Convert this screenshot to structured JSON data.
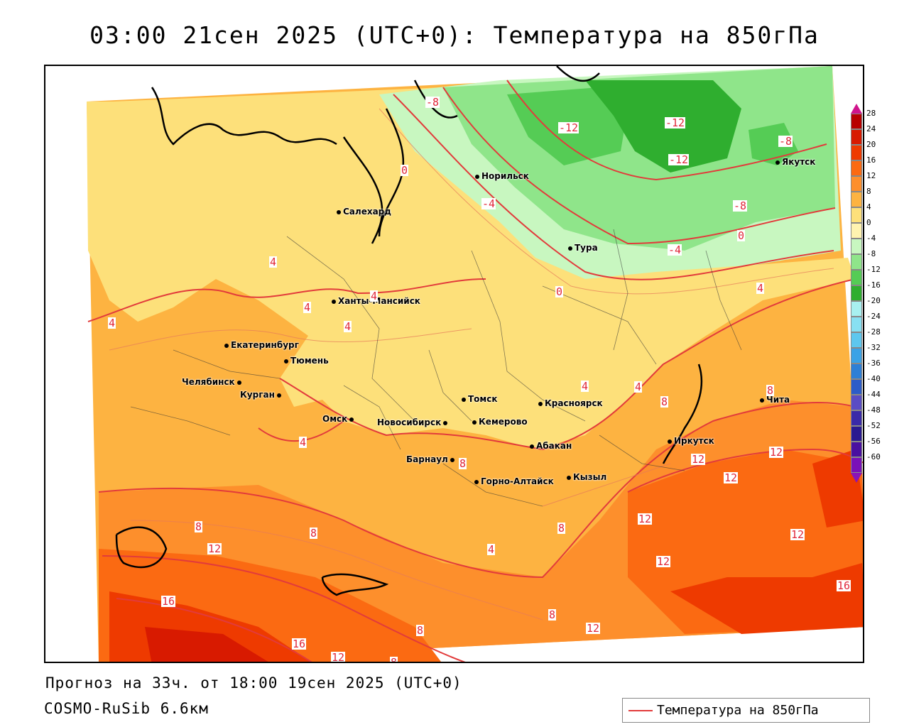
{
  "title": "03:00 21сен 2025 (UTC+0): Температура на 850гПа",
  "footer": {
    "forecast": "Прогноз на 33ч. от 18:00 19сен 2025 (UTC+0)",
    "model": "COSMO-RuSib 6.6км"
  },
  "legend": {
    "label": "Температура на 850гПа",
    "line_color": "#e23b3b"
  },
  "colorscale": {
    "ticks": [
      "28",
      "24",
      "20",
      "16",
      "12",
      "8",
      "4",
      "0",
      "-4",
      "-8",
      "-12",
      "-16",
      "-20",
      "-24",
      "-28",
      "-32",
      "-36",
      "-40",
      "-44",
      "-48",
      "-52",
      "-56",
      "-60"
    ],
    "colors": [
      "#b80000",
      "#d81a00",
      "#ee3a00",
      "#fb6a12",
      "#fd8f2c",
      "#fdb341",
      "#fde07a",
      "#fff3b0",
      "#c8f7c0",
      "#8fe58a",
      "#55cc55",
      "#2fae2f",
      "#a8f0f0",
      "#88e0f2",
      "#5ec7ee",
      "#3aa2e6",
      "#2e7fd6",
      "#2c5cc8",
      "#5a4cc4",
      "#3a2aa8",
      "#2a1a90",
      "#4a10a0",
      "#7a10b8"
    ]
  },
  "cities": [
    {
      "name": "Салехард"
    },
    {
      "name": "Норильск"
    },
    {
      "name": "Якутск"
    },
    {
      "name": "Тура"
    },
    {
      "name": "Ханты-Мансийск"
    },
    {
      "name": "Екатеринбург"
    },
    {
      "name": "Тюмень"
    },
    {
      "name": "Челябинск"
    },
    {
      "name": "Курган"
    },
    {
      "name": "Омск"
    },
    {
      "name": "Новосибирск"
    },
    {
      "name": "Томск"
    },
    {
      "name": "Кемерово"
    },
    {
      "name": "Красноярск"
    },
    {
      "name": "Барнаул"
    },
    {
      "name": "Абакан"
    },
    {
      "name": "Горно-Алтайск"
    },
    {
      "name": "Кызыл"
    },
    {
      "name": "Иркутск"
    },
    {
      "name": "Чита"
    }
  ],
  "isotherm_labels": [
    {
      "text": "-8"
    },
    {
      "text": "-12"
    },
    {
      "text": "-12"
    },
    {
      "text": "-12"
    },
    {
      "text": "-8"
    },
    {
      "text": "0"
    },
    {
      "text": "-4"
    },
    {
      "text": "-8"
    },
    {
      "text": "0"
    },
    {
      "text": "-4"
    },
    {
      "text": "0"
    },
    {
      "text": "4"
    },
    {
      "text": "4"
    },
    {
      "text": "4"
    },
    {
      "text": "4"
    },
    {
      "text": "4"
    },
    {
      "text": "4"
    },
    {
      "text": "4"
    },
    {
      "text": "4"
    },
    {
      "text": "8"
    },
    {
      "text": "8"
    },
    {
      "text": "4"
    },
    {
      "text": "12"
    },
    {
      "text": "12"
    },
    {
      "text": "12"
    },
    {
      "text": "8"
    },
    {
      "text": "12"
    },
    {
      "text": "8"
    },
    {
      "text": "8"
    },
    {
      "text": "12"
    },
    {
      "text": "4"
    },
    {
      "text": "12"
    },
    {
      "text": "8"
    },
    {
      "text": "12"
    },
    {
      "text": "16"
    },
    {
      "text": "16"
    },
    {
      "text": "8"
    },
    {
      "text": "12"
    },
    {
      "text": "8"
    },
    {
      "text": "16"
    },
    {
      "text": "12"
    },
    {
      "text": "8"
    }
  ]
}
